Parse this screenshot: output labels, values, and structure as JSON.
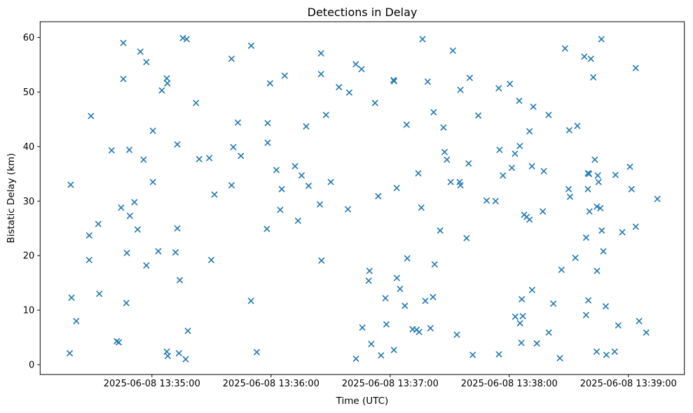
{
  "figure": {
    "background": "#ffffff",
    "frame_color": "#000000",
    "text_color": "#000000"
  },
  "chart_data": {
    "type": "scatter",
    "title": "Detections in Delay",
    "xlabel": "Time (UTC)",
    "ylabel": "Bistatic Delay (km)",
    "marker": "x",
    "marker_color": "#1f77b4",
    "grid": false,
    "legend": null,
    "x_unit": "seconds since 2025-06-08 13:34:00 UTC",
    "x_range": [
      3.7,
      328.2
    ],
    "y_range": [
      -1.8,
      62.9
    ],
    "x_ticks": [
      {
        "value": 60,
        "label": "2025-06-08 13:35:00"
      },
      {
        "value": 120,
        "label": "2025-06-08 13:36:00"
      },
      {
        "value": 180,
        "label": "2025-06-08 13:37:00"
      },
      {
        "value": 240,
        "label": "2025-06-08 13:38:00"
      },
      {
        "value": 300,
        "label": "2025-06-08 13:39:00"
      }
    ],
    "y_ticks": [
      {
        "value": 0,
        "label": "0"
      },
      {
        "value": 10,
        "label": "10"
      },
      {
        "value": 20,
        "label": "20"
      },
      {
        "value": 30,
        "label": "30"
      },
      {
        "value": 40,
        "label": "40"
      },
      {
        "value": 50,
        "label": "50"
      },
      {
        "value": 60,
        "label": "60"
      }
    ],
    "points": [
      [
        45.6,
        59.0
      ],
      [
        75.6,
        59.9
      ],
      [
        77.5,
        59.7
      ],
      [
        54.2,
        57.4
      ],
      [
        57.2,
        55.5
      ],
      [
        45.6,
        52.4
      ],
      [
        67.5,
        52.5
      ],
      [
        67.8,
        51.6
      ],
      [
        65.0,
        50.3
      ],
      [
        82.2,
        48.0
      ],
      [
        29.3,
        45.6
      ],
      [
        60.5,
        42.9
      ],
      [
        72.8,
        40.4
      ],
      [
        39.7,
        39.3
      ],
      [
        48.6,
        39.4
      ],
      [
        55.8,
        37.6
      ],
      [
        83.8,
        37.7
      ],
      [
        19.1,
        33.0
      ],
      [
        60.5,
        33.5
      ],
      [
        51.2,
        29.8
      ],
      [
        44.5,
        28.8
      ],
      [
        48.9,
        27.3
      ],
      [
        33.0,
        25.8
      ],
      [
        52.8,
        24.8
      ],
      [
        72.8,
        25.0
      ],
      [
        28.4,
        23.7
      ],
      [
        47.4,
        20.5
      ],
      [
        63.2,
        20.8
      ],
      [
        71.9,
        20.6
      ],
      [
        28.4,
        19.2
      ],
      [
        57.2,
        18.2
      ],
      [
        74.0,
        15.5
      ],
      [
        19.5,
        12.3
      ],
      [
        33.5,
        13.0
      ],
      [
        47.1,
        11.3
      ],
      [
        21.9,
        8.0
      ],
      [
        78.1,
        6.2
      ],
      [
        42.3,
        4.3
      ],
      [
        43.3,
        4.1
      ],
      [
        18.6,
        2.1
      ],
      [
        67.5,
        2.4
      ],
      [
        68.0,
        1.6
      ],
      [
        73.6,
        2.1
      ],
      [
        77.0,
        1.0
      ],
      [
        110.0,
        58.5
      ],
      [
        100.1,
        56.1
      ],
      [
        145.2,
        57.1
      ],
      [
        126.9,
        53.0
      ],
      [
        145.2,
        53.3
      ],
      [
        119.5,
        51.6
      ],
      [
        154.2,
        50.9
      ],
      [
        159.4,
        49.9
      ],
      [
        147.7,
        45.8
      ],
      [
        103.3,
        44.4
      ],
      [
        118.3,
        44.3
      ],
      [
        137.7,
        43.7
      ],
      [
        118.3,
        40.7
      ],
      [
        101.0,
        39.9
      ],
      [
        104.8,
        38.3
      ],
      [
        88.9,
        37.9
      ],
      [
        132.1,
        36.4
      ],
      [
        135.4,
        34.7
      ],
      [
        122.7,
        35.7
      ],
      [
        138.9,
        32.8
      ],
      [
        150.1,
        33.5
      ],
      [
        100.1,
        32.9
      ],
      [
        125.4,
        32.2
      ],
      [
        91.5,
        31.2
      ],
      [
        124.6,
        28.4
      ],
      [
        144.6,
        29.4
      ],
      [
        158.7,
        28.5
      ],
      [
        133.6,
        26.4
      ],
      [
        117.9,
        24.9
      ],
      [
        89.9,
        19.2
      ],
      [
        145.4,
        19.1
      ],
      [
        109.9,
        11.7
      ],
      [
        112.8,
        2.3
      ],
      [
        162.8,
        1.1
      ],
      [
        196.3,
        59.7
      ],
      [
        211.6,
        57.6
      ],
      [
        162.7,
        55.1
      ],
      [
        165.6,
        54.2
      ],
      [
        181.7,
        52.2
      ],
      [
        182.0,
        52.0
      ],
      [
        198.9,
        51.9
      ],
      [
        220.1,
        52.6
      ],
      [
        215.4,
        50.4
      ],
      [
        234.7,
        50.7
      ],
      [
        240.3,
        51.5
      ],
      [
        172.4,
        48.0
      ],
      [
        245.0,
        48.4
      ],
      [
        201.9,
        46.3
      ],
      [
        224.4,
        45.7
      ],
      [
        188.3,
        44.0
      ],
      [
        206.9,
        43.5
      ],
      [
        207.4,
        39.0
      ],
      [
        235.1,
        39.4
      ],
      [
        245.3,
        40.1
      ],
      [
        242.9,
        38.7
      ],
      [
        208.6,
        37.6
      ],
      [
        219.5,
        36.9
      ],
      [
        241.3,
        36.1
      ],
      [
        236.8,
        34.7
      ],
      [
        194.2,
        35.1
      ],
      [
        210.5,
        33.5
      ],
      [
        215.0,
        33.5
      ],
      [
        215.4,
        32.9
      ],
      [
        183.3,
        32.4
      ],
      [
        174.0,
        30.9
      ],
      [
        195.7,
        28.8
      ],
      [
        228.6,
        30.1
      ],
      [
        233.1,
        30.0
      ],
      [
        205.2,
        24.6
      ],
      [
        218.5,
        23.2
      ],
      [
        188.6,
        19.5
      ],
      [
        202.4,
        18.4
      ],
      [
        169.6,
        17.2
      ],
      [
        169.2,
        15.4
      ],
      [
        183.4,
        15.9
      ],
      [
        185.0,
        13.9
      ],
      [
        177.6,
        12.2
      ],
      [
        197.7,
        11.7
      ],
      [
        201.6,
        12.4
      ],
      [
        187.4,
        10.8
      ],
      [
        178.1,
        7.4
      ],
      [
        191.3,
        6.5
      ],
      [
        193.3,
        6.4
      ],
      [
        194.6,
        6.0
      ],
      [
        200.3,
        6.7
      ],
      [
        213.6,
        5.5
      ],
      [
        166.0,
        6.8
      ],
      [
        170.5,
        3.8
      ],
      [
        181.9,
        2.7
      ],
      [
        175.4,
        1.7
      ],
      [
        221.6,
        1.8
      ],
      [
        234.8,
        1.9
      ],
      [
        286.4,
        59.7
      ],
      [
        268.1,
        58.0
      ],
      [
        277.8,
        56.5
      ],
      [
        281.1,
        56.1
      ],
      [
        303.7,
        54.4
      ],
      [
        282.3,
        52.7
      ],
      [
        252.1,
        47.3
      ],
      [
        259.8,
        45.8
      ],
      [
        274.3,
        43.8
      ],
      [
        270.2,
        43.0
      ],
      [
        250.2,
        42.8
      ],
      [
        251.4,
        36.4
      ],
      [
        257.4,
        35.5
      ],
      [
        283.1,
        37.6
      ],
      [
        279.6,
        35.1
      ],
      [
        280.2,
        35.0
      ],
      [
        284.6,
        34.7
      ],
      [
        293.5,
        34.8
      ],
      [
        300.8,
        36.3
      ],
      [
        285.0,
        33.5
      ],
      [
        269.9,
        32.2
      ],
      [
        279.6,
        32.2
      ],
      [
        301.6,
        32.2
      ],
      [
        270.6,
        30.8
      ],
      [
        314.6,
        30.4
      ],
      [
        256.9,
        28.1
      ],
      [
        247.5,
        27.5
      ],
      [
        248.8,
        27.1
      ],
      [
        250.2,
        26.6
      ],
      [
        280.4,
        28.1
      ],
      [
        284.1,
        29.0
      ],
      [
        285.9,
        28.7
      ],
      [
        286.6,
        24.6
      ],
      [
        296.9,
        24.3
      ],
      [
        303.7,
        25.3
      ],
      [
        278.7,
        23.3
      ],
      [
        287.4,
        20.8
      ],
      [
        273.3,
        19.6
      ],
      [
        266.3,
        17.4
      ],
      [
        284.2,
        17.2
      ],
      [
        251.5,
        13.7
      ],
      [
        246.3,
        12.0
      ],
      [
        262.2,
        11.2
      ],
      [
        279.8,
        11.8
      ],
      [
        288.6,
        10.7
      ],
      [
        278.7,
        9.1
      ],
      [
        243.0,
        8.8
      ],
      [
        246.8,
        8.9
      ],
      [
        245.4,
        7.6
      ],
      [
        305.4,
        8.0
      ],
      [
        309.0,
        5.9
      ],
      [
        294.9,
        7.2
      ],
      [
        253.9,
        3.9
      ],
      [
        246.1,
        4.0
      ],
      [
        259.9,
        5.9
      ],
      [
        284.0,
        2.4
      ],
      [
        288.9,
        1.8
      ],
      [
        293.1,
        2.4
      ],
      [
        265.5,
        1.2
      ]
    ]
  }
}
